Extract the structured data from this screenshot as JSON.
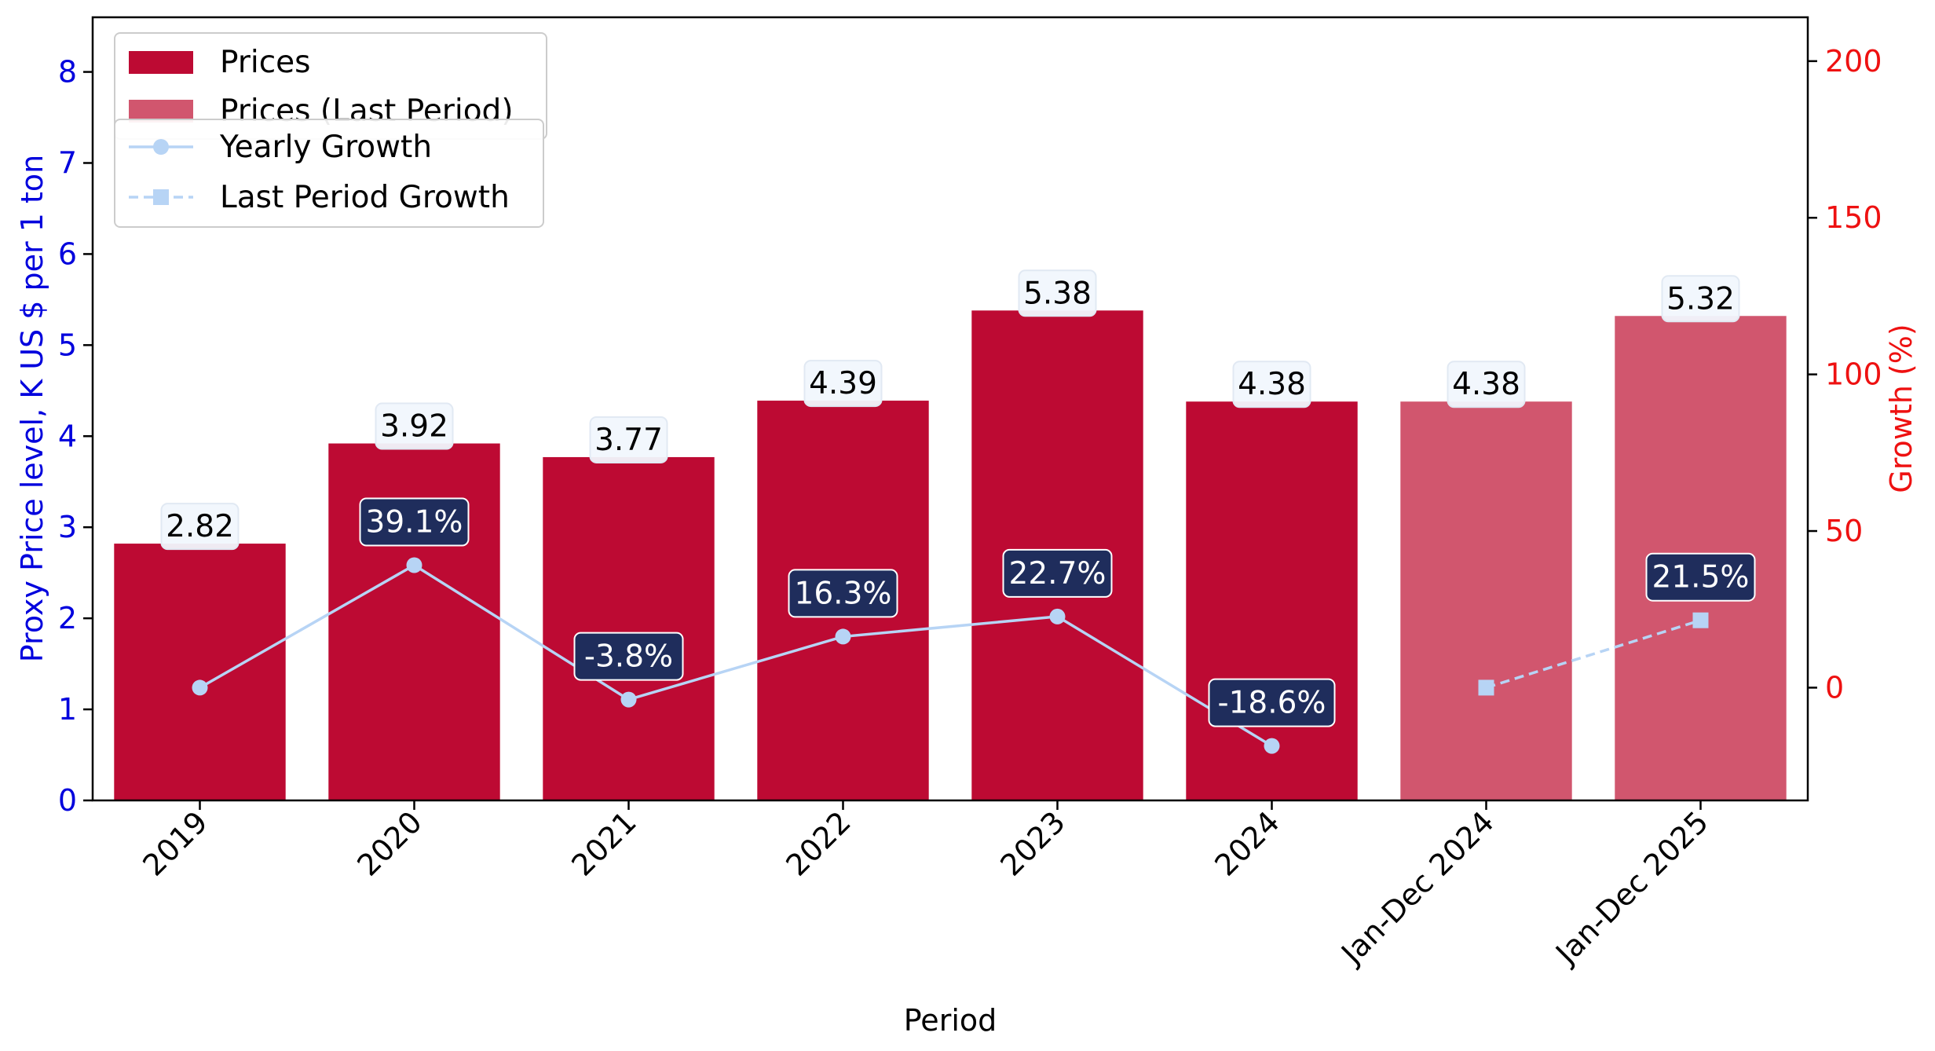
{
  "chart_data": {
    "type": "bar",
    "categories": [
      "2019",
      "2020",
      "2021",
      "2022",
      "2023",
      "2024",
      "Jan-Dec 2024",
      "Jan-Dec 2025"
    ],
    "series": [
      {
        "name": "Prices",
        "kind": "bar",
        "axis": "left",
        "color": "#bd0a33",
        "values": [
          2.82,
          3.92,
          3.77,
          4.39,
          5.38,
          4.38,
          null,
          null
        ],
        "labels": [
          "2.82",
          "3.92",
          "3.77",
          "4.39",
          "5.38",
          "4.38",
          null,
          null
        ]
      },
      {
        "name": "Prices (Last Period)",
        "kind": "bar",
        "axis": "left",
        "color": "#d1566e",
        "values": [
          null,
          null,
          null,
          null,
          null,
          null,
          4.38,
          5.32
        ],
        "labels": [
          null,
          null,
          null,
          null,
          null,
          null,
          "4.38",
          "5.32"
        ]
      },
      {
        "name": "Yearly Growth",
        "kind": "line",
        "axis": "right",
        "color": "#b7d4f5",
        "marker": "circle",
        "dash": "solid",
        "values": [
          0,
          39.1,
          -3.8,
          16.3,
          22.7,
          -18.6,
          null,
          null
        ],
        "labels": [
          null,
          "39.1%",
          "-3.8%",
          "16.3%",
          "22.7%",
          "-18.6%",
          null,
          null
        ]
      },
      {
        "name": "Last Period Growth",
        "kind": "line",
        "axis": "right",
        "color": "#b7d4f5",
        "marker": "square",
        "dash": "dashed",
        "values": [
          null,
          null,
          null,
          null,
          null,
          null,
          0,
          21.5
        ],
        "labels": [
          null,
          null,
          null,
          null,
          null,
          null,
          null,
          "21.5%"
        ]
      }
    ],
    "xlabel": "Period",
    "ylabel": "Proxy Price level, K US $ per 1 ton",
    "y2label": "Growth (%)",
    "ylim": [
      0,
      8.6
    ],
    "y2lim": [
      -36,
      214
    ],
    "yticks": [
      "0",
      "1",
      "2",
      "3",
      "4",
      "5",
      "6",
      "7",
      "8"
    ],
    "y2ticks": [
      "0",
      "50",
      "100",
      "150",
      "200"
    ],
    "ylabel_color": "#0000dd",
    "y2label_color": "#ee1111",
    "label_box_fill": "#f1f7fd",
    "growth_box_fill": "#1f2d5c",
    "grid": false,
    "legend_placement": "top-left"
  }
}
